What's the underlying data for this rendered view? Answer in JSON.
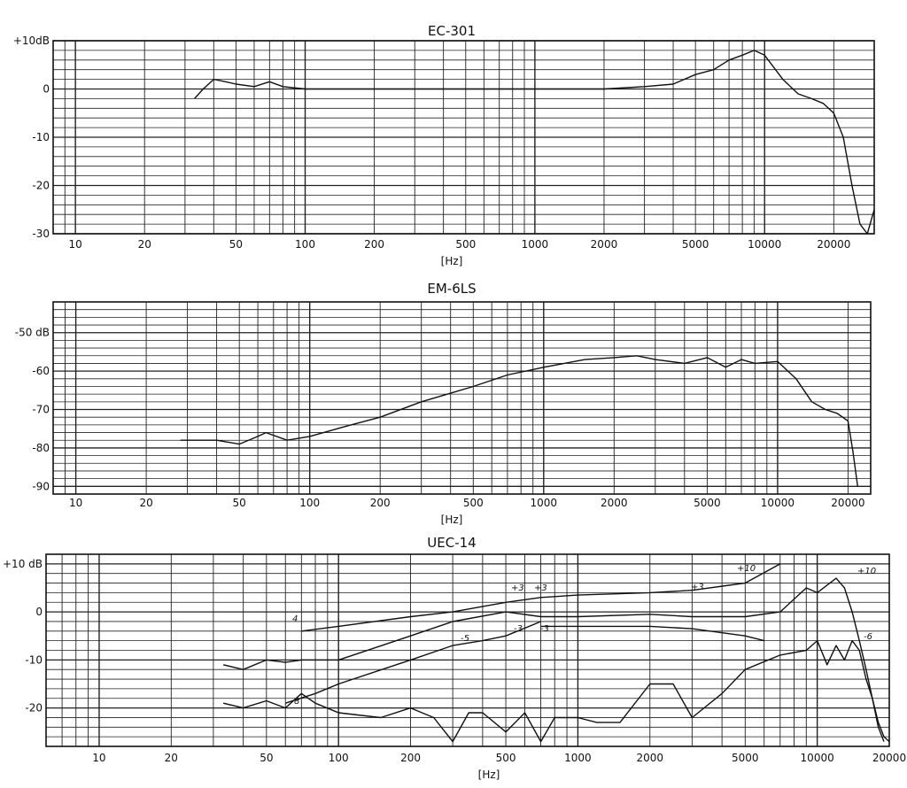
{
  "chart_data": [
    {
      "type": "line",
      "title": "EC-301",
      "xlabel": "[Hz]",
      "x_scale": "log",
      "xlim": [
        8,
        30000
      ],
      "ylim": [
        -30,
        10
      ],
      "x_ticks": [
        10,
        20,
        50,
        100,
        200,
        500,
        1000,
        2000,
        5000,
        10000,
        20000
      ],
      "x_tick_labels": [
        "10",
        "20",
        "50",
        "100",
        "200",
        "500",
        "1000",
        "2000",
        "5000",
        "10000",
        "20000"
      ],
      "y_ticks": [
        10,
        0,
        -10,
        -20,
        -30
      ],
      "y_tick_labels": [
        "+10dB",
        "0",
        "-10",
        "-20",
        "-30"
      ],
      "grid": true,
      "series": [
        {
          "x": [
            33,
            36,
            40,
            45,
            50,
            60,
            70,
            80,
            100,
            150,
            200,
            300,
            500,
            700,
            1000,
            1500,
            2000,
            3000,
            4000,
            5000,
            6000,
            7000,
            8000,
            9000,
            10000,
            12000,
            14000,
            16000,
            18000,
            20000,
            22000,
            24000,
            26000,
            28000,
            30000
          ],
          "y": [
            -2,
            0,
            2,
            1.5,
            1,
            0.5,
            1.5,
            0.5,
            0,
            0,
            0,
            0,
            0,
            0,
            0,
            0,
            0,
            0.5,
            1,
            3,
            4,
            6,
            7,
            8,
            7,
            2,
            -1,
            -2,
            -3,
            -5,
            -10,
            -20,
            -28,
            -30,
            -25
          ]
        }
      ]
    },
    {
      "type": "line",
      "title": "EM-6LS",
      "xlabel": "[Hz]",
      "x_scale": "log",
      "xlim": [
        8,
        25000
      ],
      "ylim": [
        -92,
        -42
      ],
      "x_ticks": [
        10,
        20,
        50,
        100,
        200,
        500,
        1000,
        2000,
        5000,
        10000,
        20000
      ],
      "x_tick_labels": [
        "10",
        "20",
        "50",
        "100",
        "200",
        "500",
        "1000",
        "2000",
        "5000",
        "10000",
        "20000"
      ],
      "y_ticks": [
        -50,
        -60,
        -70,
        -80,
        -90
      ],
      "y_tick_labels": [
        "-50 dB",
        "-60",
        "-70",
        "-80",
        "-90"
      ],
      "grid": true,
      "series": [
        {
          "x": [
            28,
            35,
            40,
            50,
            60,
            65,
            80,
            100,
            150,
            200,
            300,
            500,
            700,
            1000,
            1500,
            2000,
            2500,
            3000,
            4000,
            5000,
            6000,
            7000,
            8000,
            10000,
            12000,
            14000,
            16000,
            18000,
            20000,
            21000,
            22000
          ],
          "y": [
            -78,
            -78,
            -78,
            -79,
            -77,
            -76,
            -78,
            -77,
            -74,
            -72,
            -68,
            -64,
            -61,
            -59,
            -57,
            -56.5,
            -56,
            -57,
            -58,
            -56.5,
            -59,
            -57,
            -58,
            -57.5,
            -62,
            -68,
            -70,
            -71,
            -73,
            -81,
            -90
          ]
        }
      ]
    },
    {
      "type": "line",
      "title": "UEC-14",
      "xlabel": "[Hz]",
      "x_scale": "log",
      "xlim": [
        6,
        20000
      ],
      "ylim": [
        -28,
        12
      ],
      "x_ticks": [
        10,
        20,
        50,
        100,
        200,
        500,
        1000,
        2000,
        5000,
        10000,
        20000
      ],
      "x_tick_labels": [
        "10",
        "20",
        "50",
        "100",
        "200",
        "500",
        "1000",
        "2000",
        "5000",
        "10000",
        "20000"
      ],
      "y_ticks": [
        10,
        0,
        -10,
        -20
      ],
      "y_tick_labels": [
        "+10 dB",
        "0",
        "-10",
        "-20"
      ],
      "grid": true,
      "annotations": [
        "4",
        "+3",
        "+3",
        "-5",
        "-3",
        "-3",
        "+3",
        "+10",
        "+10",
        "-6",
        "8"
      ],
      "series": [
        {
          "x": [
            70,
            100,
            200,
            300,
            500,
            700
          ],
          "y": [
            -4,
            -3,
            -1,
            0,
            2,
            3
          ]
        },
        {
          "x": [
            700,
            1000,
            2000,
            3000,
            5000,
            7000
          ],
          "y": [
            3,
            3.5,
            4,
            4.5,
            6,
            10
          ]
        },
        {
          "x": [
            700,
            1000,
            2000,
            3000,
            5000,
            6000
          ],
          "y": [
            -3,
            -3,
            -3,
            -3.5,
            -5,
            -6
          ]
        },
        {
          "x": [
            33,
            40,
            50,
            60,
            70,
            100,
            200,
            300,
            500,
            700,
            1000,
            2000,
            3000,
            5000,
            7000,
            9000,
            10000,
            12000,
            13000,
            14000,
            15000,
            16000,
            17000,
            18000,
            19000,
            20000
          ],
          "y": [
            -11,
            -12,
            -10,
            -10.5,
            -10,
            -10,
            -5,
            -2,
            0,
            -1,
            -1,
            -0.5,
            -1,
            -1,
            0,
            5,
            4,
            7,
            5,
            0,
            -6,
            -12,
            -18,
            -23,
            -26,
            -27
          ]
        },
        {
          "x": [
            60,
            80,
            100,
            200,
            300,
            400,
            500,
            700
          ],
          "y": [
            -19,
            -17,
            -15,
            -10,
            -7,
            -6,
            -5,
            -2
          ]
        },
        {
          "x": [
            33,
            40,
            50,
            60,
            70,
            80,
            100,
            150,
            200,
            250,
            300,
            350,
            400,
            500,
            600,
            700,
            800,
            1000,
            1200,
            1500,
            2000,
            2500,
            3000,
            4000,
            5000,
            7000,
            9000,
            10000,
            11000,
            12000,
            13000,
            14000,
            15000,
            16000,
            17000,
            18000,
            19000
          ],
          "y": [
            -19,
            -20,
            -18.5,
            -20,
            -17,
            -19,
            -21,
            -22,
            -20,
            -22,
            -27,
            -21,
            -21,
            -25,
            -21,
            -27,
            -22,
            -22,
            -23,
            -23,
            -15,
            -15,
            -22,
            -17,
            -12,
            -9,
            -8,
            -6,
            -11,
            -7,
            -10,
            -6,
            -8,
            -14,
            -18,
            -24,
            -27
          ]
        }
      ]
    }
  ]
}
